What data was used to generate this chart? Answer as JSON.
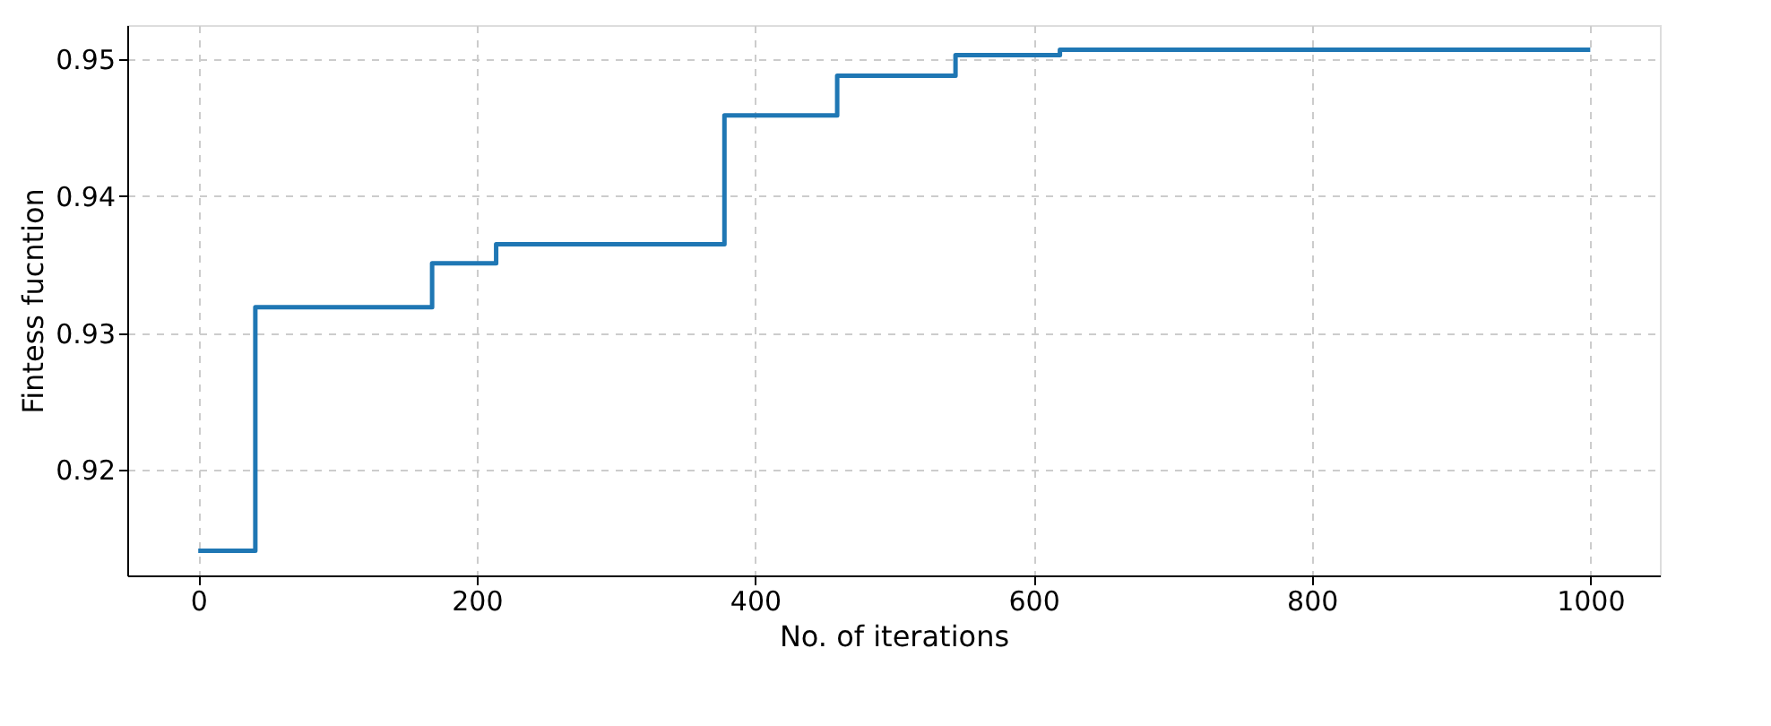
{
  "chart_data": {
    "type": "step",
    "xlabel": "No. of iterations",
    "ylabel": "Fintess fucntion",
    "series": [
      {
        "color": "#1f77b4",
        "x": [
          0,
          41,
          168,
          214,
          378,
          459,
          544,
          619,
          1000
        ],
        "values": [
          0.9141,
          0.9319,
          0.9351,
          0.9365,
          0.9459,
          0.9488,
          0.9503,
          0.9507,
          0.9507
        ]
      }
    ],
    "xlim": [
      -51,
      1050
    ],
    "ylim": [
      0.9123,
      0.9525
    ],
    "xticks": [
      0,
      200,
      400,
      600,
      800,
      1000
    ],
    "yticks": [
      0.92,
      0.93,
      0.94,
      0.95
    ],
    "grid": true,
    "line_style": "solid",
    "marker": "none"
  }
}
